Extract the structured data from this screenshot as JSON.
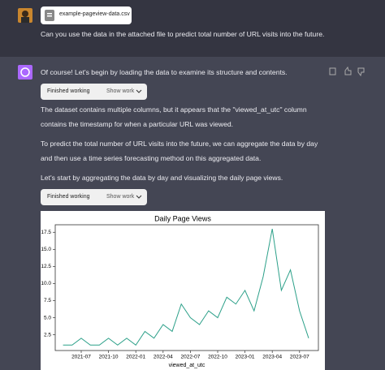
{
  "user": {
    "file_name": "example-pageview-data.csv",
    "message": "Can you use the data in the attached file to predict total number of URL visits into the future."
  },
  "assistant": {
    "paragraphs": [
      "Of course! Let's begin by loading the data to examine its structure and contents.",
      "The dataset contains multiple columns, but it appears that the \"viewed_at_utc\" column",
      "contains the timestamp for when a particular URL was viewed.",
      "To predict the total number of URL visits into the future, we can aggregate the data by day",
      "and then use a time series forecasting method on this aggregated data.",
      "Let's start by aggregating the data by day and visualizing the daily page views."
    ],
    "tool_buttons": [
      {
        "label": "Finished working",
        "action": "Show work"
      },
      {
        "label": "Finished working",
        "action": "Show work"
      }
    ]
  },
  "chart_data": {
    "type": "line",
    "title": "Daily Page Views",
    "x_label": "viewed_at_utc",
    "color": "#2ca089",
    "x": [
      "2021-05",
      "2021-06",
      "2021-07",
      "2021-08",
      "2021-09",
      "2021-10",
      "2021-11",
      "2021-12",
      "2022-01",
      "2022-02",
      "2022-03",
      "2022-04",
      "2022-05",
      "2022-06",
      "2022-07",
      "2022-08",
      "2022-09",
      "2022-10",
      "2022-11",
      "2022-12",
      "2023-01",
      "2023-02",
      "2023-03",
      "2023-04",
      "2023-05",
      "2023-06",
      "2023-07",
      "2023-08"
    ],
    "values": [
      1,
      1,
      2,
      1,
      1,
      2,
      1,
      2,
      1,
      3,
      2,
      4,
      3,
      7,
      5,
      4,
      6,
      5,
      8,
      7,
      9,
      6,
      11,
      18,
      9,
      12,
      6,
      2
    ],
    "xticks": [
      "2021-07",
      "2021-10",
      "2022-01",
      "2022-04",
      "2022-07",
      "2022-10",
      "2023-01",
      "2023-04",
      "2023-07"
    ],
    "ylim": [
      0.2,
      18.6
    ],
    "yticks": [
      2.5,
      {
        "value": 5,
        "label": "5.0"
      },
      7.5,
      {
        "value": 10,
        "label": "10.0"
      },
      12.5,
      {
        "value": 15,
        "label": "15.0"
      },
      17.5
    ]
  }
}
